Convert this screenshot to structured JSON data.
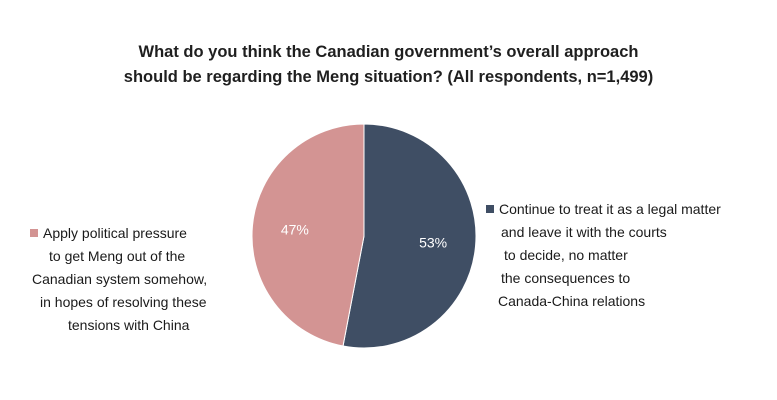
{
  "chart_data": {
    "type": "pie",
    "title_lines": [
      "What do you think the Canadian government’s overall approach",
      "should be regarding the Meng situation? (All respondents, n=1,499)"
    ],
    "slices": [
      {
        "label_lines": [
          "Continue to treat it as a legal matter",
          "and  leave it with the courts",
          "to decide, no matter",
          "the consequences to",
          "Canada-China  relations"
        ],
        "value": 53,
        "display": "53%",
        "color": "#3f4e64"
      },
      {
        "label_lines": [
          "Apply political pressure",
          "to get Meng out of  the",
          "Canadian system somehow,",
          "in hopes of  resolving these",
          "tensions with China"
        ],
        "value": 47,
        "display": "47%",
        "color": "#d39493"
      }
    ],
    "start_angle_deg": 0,
    "direction": "clockwise",
    "legend_placement": "sides"
  }
}
